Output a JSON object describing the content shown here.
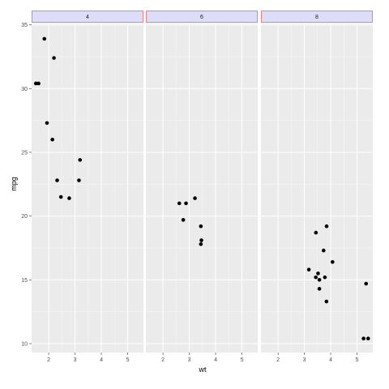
{
  "chart_data": {
    "type": "scatter",
    "facet_variable": "cyl",
    "facets": [
      {
        "label": "4",
        "x": [
          1.513,
          1.615,
          1.835,
          1.935,
          2.14,
          2.2,
          2.32,
          2.465,
          2.78,
          3.15,
          3.19
        ],
        "y": [
          30.4,
          30.4,
          33.9,
          27.3,
          26.0,
          32.4,
          22.8,
          21.5,
          21.4,
          22.8,
          24.4
        ]
      },
      {
        "label": "6",
        "x": [
          2.62,
          2.77,
          2.875,
          3.215,
          3.44,
          3.44,
          3.46
        ],
        "y": [
          21.0,
          19.7,
          21.0,
          21.4,
          19.2,
          17.8,
          18.1
        ]
      },
      {
        "label": "8",
        "x": [
          3.17,
          3.435,
          3.44,
          3.52,
          3.57,
          3.57,
          3.73,
          3.78,
          3.84,
          3.845,
          4.07,
          5.25,
          5.345,
          5.424
        ],
        "y": [
          15.8,
          15.2,
          18.7,
          15.5,
          14.3,
          15.0,
          17.3,
          15.2,
          13.3,
          19.2,
          16.4,
          10.4,
          14.7,
          10.4
        ]
      }
    ],
    "xlabel": "wt",
    "ylabel": "mpg",
    "xlim": [
      1.35,
      5.6
    ],
    "ylim": [
      9.3,
      35.1
    ],
    "x_ticks": [
      "2",
      "3",
      "4",
      "5"
    ],
    "y_ticks": [
      "10",
      "15",
      "20",
      "25",
      "30",
      "35"
    ],
    "grid": true
  }
}
